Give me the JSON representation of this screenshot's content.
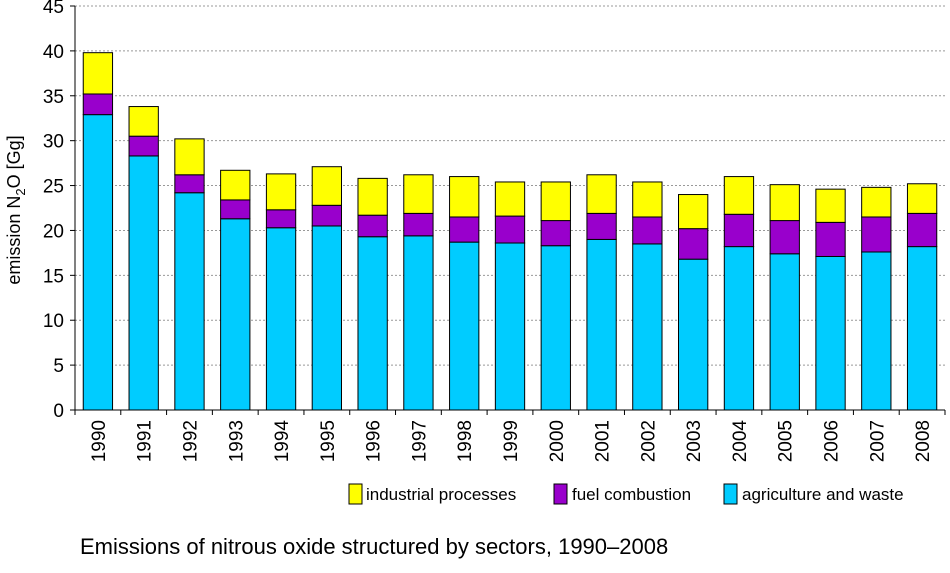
{
  "chart_data": {
    "type": "bar",
    "stacked": true,
    "categories": [
      "1990",
      "1991",
      "1992",
      "1993",
      "1994",
      "1995",
      "1996",
      "1997",
      "1998",
      "1999",
      "2000",
      "2001",
      "2002",
      "2003",
      "2004",
      "2005",
      "2006",
      "2007",
      "2008"
    ],
    "series": [
      {
        "name": "agriculture and waste",
        "color": "#00CCFF",
        "values": [
          32.9,
          28.3,
          24.2,
          21.3,
          20.3,
          20.5,
          19.3,
          19.4,
          18.7,
          18.6,
          18.3,
          19.0,
          18.5,
          16.8,
          18.2,
          17.4,
          17.1,
          17.6,
          18.2
        ]
      },
      {
        "name": "fuel combustion",
        "color": "#9900CC",
        "values": [
          2.3,
          2.2,
          2.0,
          2.1,
          2.0,
          2.3,
          2.4,
          2.5,
          2.8,
          3.0,
          2.8,
          2.9,
          3.0,
          3.4,
          3.6,
          3.7,
          3.8,
          3.9,
          3.7
        ]
      },
      {
        "name": "industrial processes",
        "color": "#FFFF00",
        "values": [
          4.6,
          3.3,
          4.0,
          3.3,
          4.0,
          4.3,
          4.1,
          4.3,
          4.5,
          3.8,
          4.3,
          4.3,
          3.9,
          3.8,
          4.2,
          4.0,
          3.7,
          3.3,
          3.3
        ]
      }
    ],
    "ylabel": "emission N",
    "ylabel_sub": "2",
    "ylabel_rest": "O [Gg]",
    "ylim": [
      0,
      45
    ],
    "yticks": [
      0,
      5,
      10,
      15,
      20,
      25,
      30,
      35,
      40,
      45
    ],
    "grid": true,
    "legend_order": [
      "industrial processes",
      "fuel combustion",
      "agriculture and waste"
    ],
    "legend_position": "bottom-right"
  },
  "caption": "Emissions of nitrous oxide structured by sectors, 1990–2008"
}
